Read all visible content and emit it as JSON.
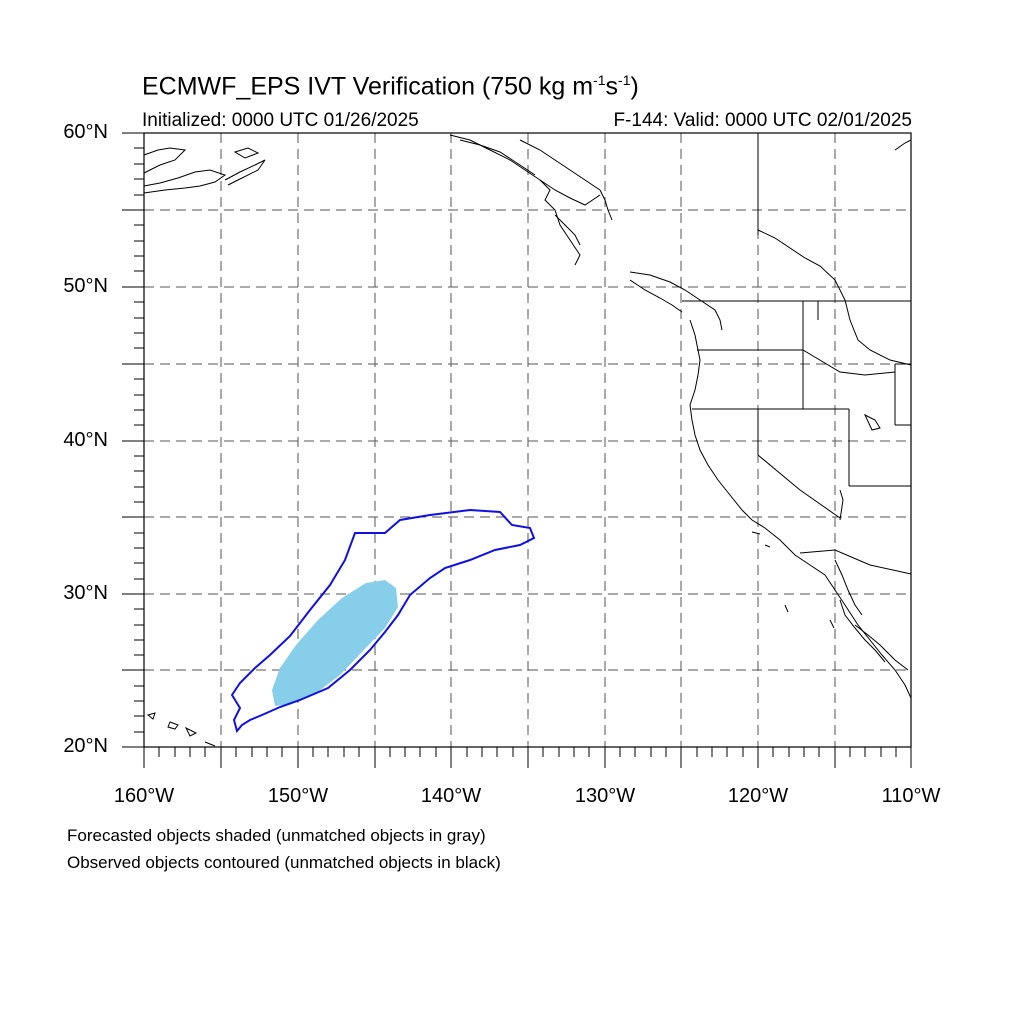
{
  "title": {
    "main": "ECMWF_EPS IVT Verification (750 kg m",
    "exp1": "-1",
    "mid": "s",
    "exp2": "-1",
    "close": ")"
  },
  "subtitle": {
    "initialized": "Initialized: 0000 UTC 01/26/2025",
    "valid": "F-144: Valid: 0000 UTC 02/01/2025"
  },
  "axes": {
    "lat_labels": [
      "60°N",
      "50°N",
      "40°N",
      "30°N",
      "20°N"
    ],
    "lon_labels": [
      "160°W",
      "150°W",
      "140°W",
      "130°W",
      "120°W",
      "110°W"
    ],
    "lat_range": [
      20,
      60
    ],
    "lon_range": [
      -160,
      -110
    ]
  },
  "legend": {
    "line1": "Forecasted objects shaded (unmatched objects in gray)",
    "line2": "Observed objects contoured (unmatched objects in black)"
  },
  "colors": {
    "forecast_fill": "#87ceeb",
    "observed_contour": "#1010e0",
    "coastline": "#000000",
    "grid": "#555555"
  }
}
